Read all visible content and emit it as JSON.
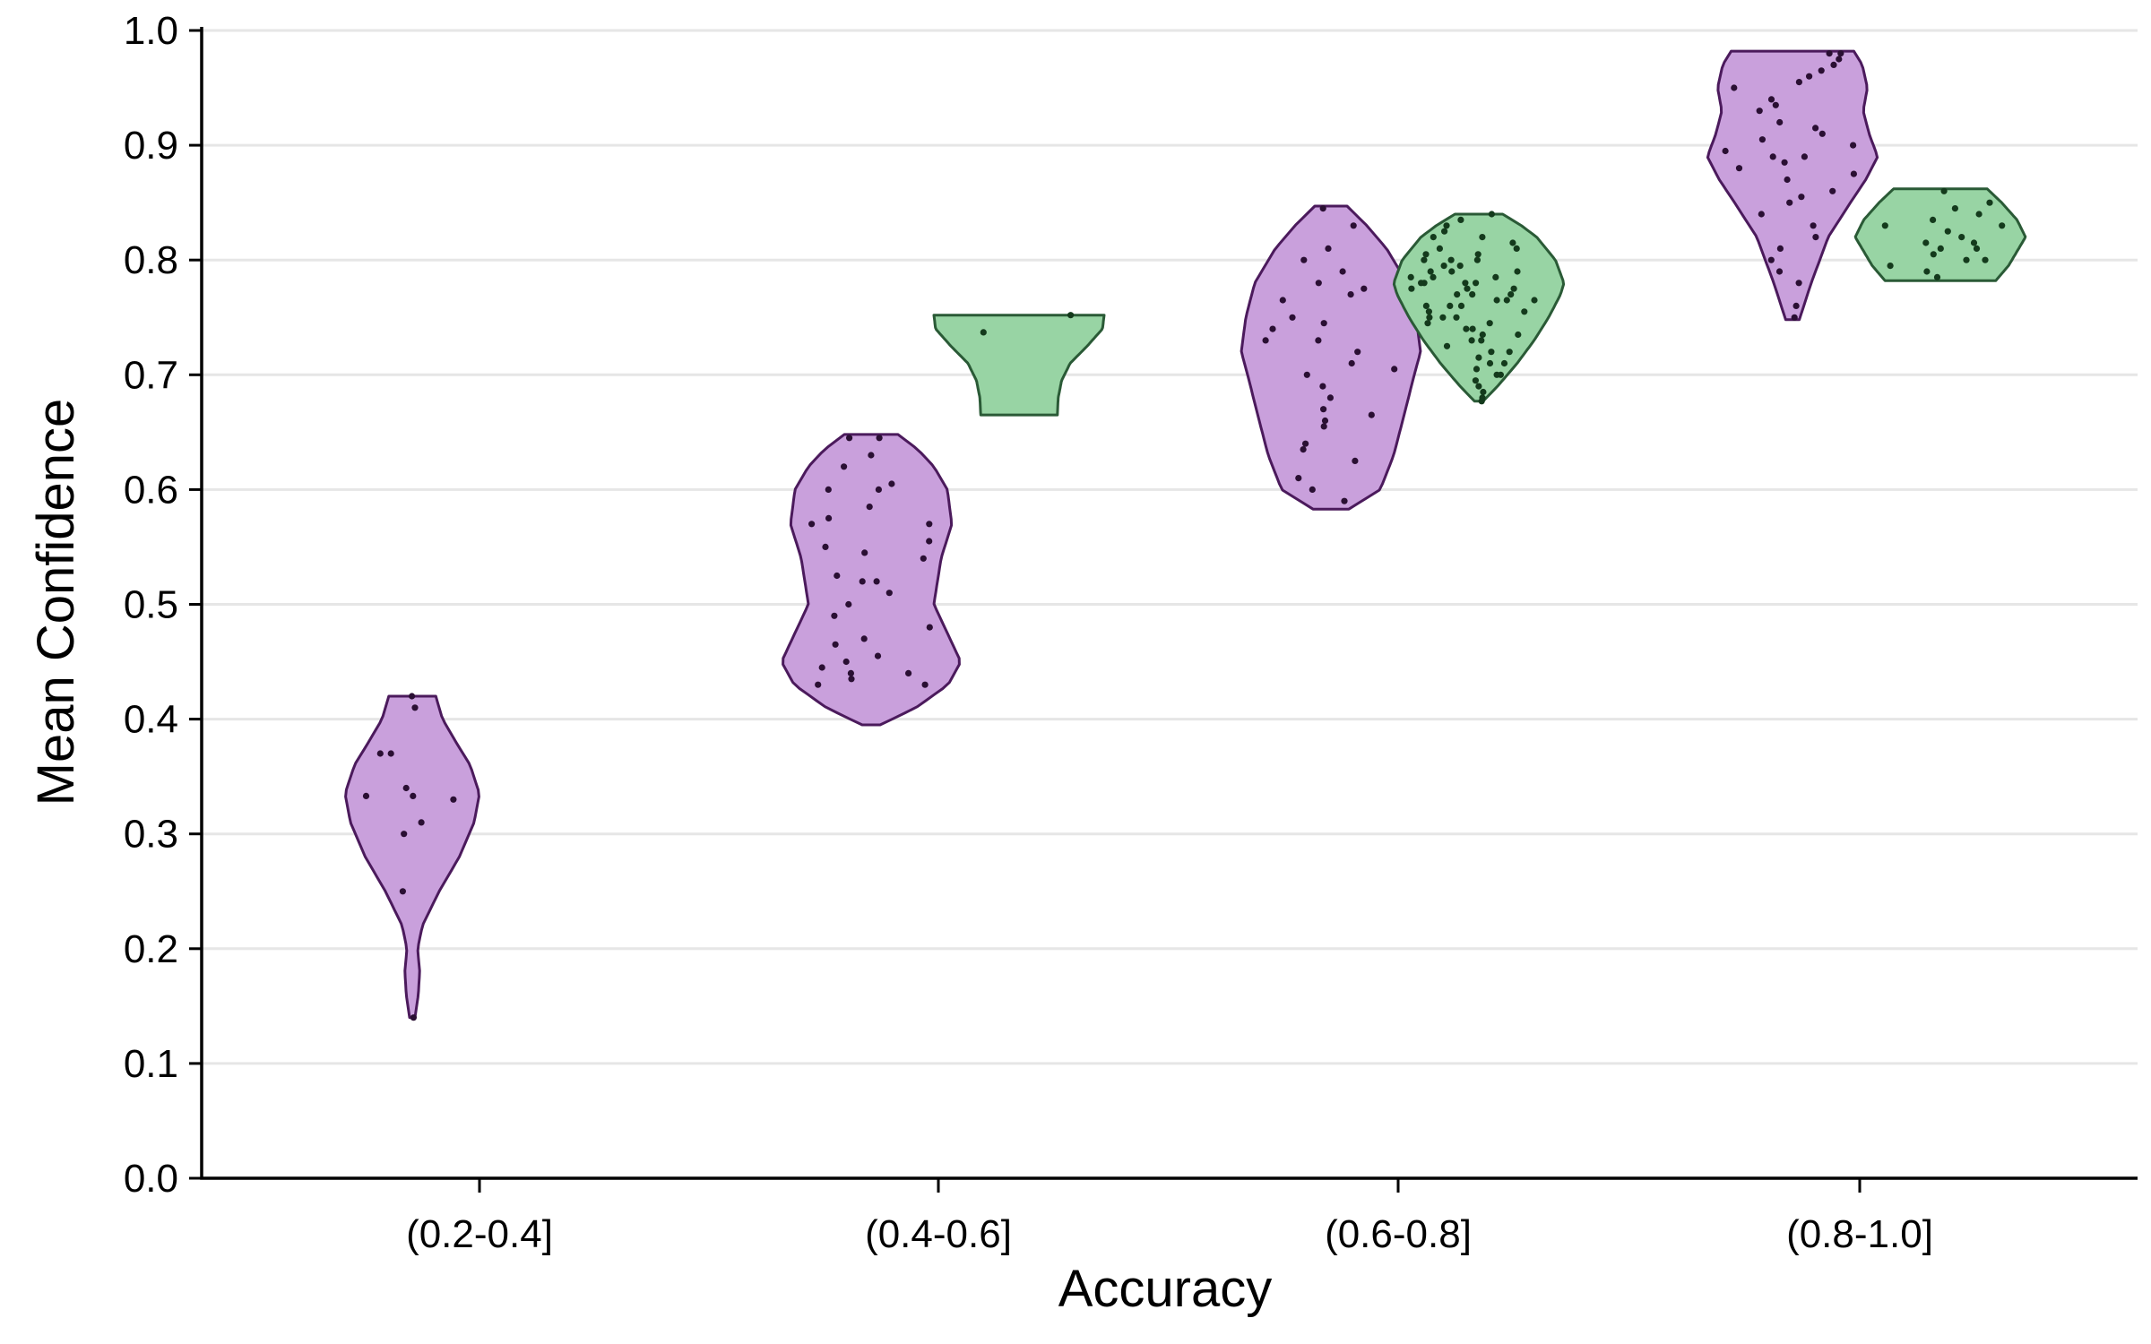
{
  "chart_data": {
    "type": "violin",
    "title": "",
    "xlabel": "Accuracy",
    "ylabel": "Mean Confidence",
    "ylim": [
      0.0,
      1.0
    ],
    "yticks": [
      "0.0",
      "0.1",
      "0.2",
      "0.3",
      "0.4",
      "0.5",
      "0.6",
      "0.7",
      "0.8",
      "0.9",
      "1.0"
    ],
    "categories": [
      "(0.2-0.4]",
      "(0.4-0.6]",
      "(0.6-0.8]",
      "(0.8-1.0]"
    ],
    "grid": "horizontal",
    "legend": "none",
    "colors": {
      "series_a_fill": "#c9a0dc",
      "series_a_stroke": "#4b1a5c",
      "series_a_point": "#2a0f33",
      "series_b_fill": "#98d4a4",
      "series_b_stroke": "#2a5a36",
      "series_b_point": "#143a1c"
    },
    "series": [
      {
        "violins": [
          {
            "category": "(0.2-0.4]",
            "range": [
              0.14,
              0.42
            ],
            "profile": [
              [
                0.14,
                0.04
              ],
              [
                0.16,
                0.09
              ],
              [
                0.18,
                0.11
              ],
              [
                0.2,
                0.08
              ],
              [
                0.22,
                0.15
              ],
              [
                0.25,
                0.4
              ],
              [
                0.28,
                0.7
              ],
              [
                0.31,
                0.92
              ],
              [
                0.335,
                1.0
              ],
              [
                0.36,
                0.86
              ],
              [
                0.38,
                0.65
              ],
              [
                0.4,
                0.45
              ],
              [
                0.42,
                0.35
              ]
            ],
            "points": [
              0.42,
              0.41,
              0.37,
              0.37,
              0.34,
              0.333,
              0.333,
              0.33,
              0.31,
              0.3,
              0.25,
              0.14
            ]
          },
          {
            "category": "(0.4-0.6]",
            "range": [
              0.395,
              0.648
            ],
            "profile": [
              [
                0.395,
                0.1
              ],
              [
                0.41,
                0.5
              ],
              [
                0.43,
                0.86
              ],
              [
                0.45,
                1.0
              ],
              [
                0.47,
                0.88
              ],
              [
                0.5,
                0.7
              ],
              [
                0.54,
                0.78
              ],
              [
                0.57,
                0.9
              ],
              [
                0.6,
                0.85
              ],
              [
                0.62,
                0.7
              ],
              [
                0.635,
                0.52
              ],
              [
                0.648,
                0.3
              ]
            ],
            "points": [
              0.645,
              0.645,
              0.63,
              0.62,
              0.605,
              0.6,
              0.6,
              0.585,
              0.575,
              0.57,
              0.57,
              0.555,
              0.55,
              0.545,
              0.54,
              0.525,
              0.52,
              0.52,
              0.51,
              0.5,
              0.49,
              0.48,
              0.47,
              0.465,
              0.455,
              0.45,
              0.445,
              0.44,
              0.44,
              0.435,
              0.43,
              0.43
            ]
          },
          {
            "category": "(0.6-0.8]",
            "range": [
              0.583,
              0.847
            ],
            "profile": [
              [
                0.583,
                0.2
              ],
              [
                0.6,
                0.55
              ],
              [
                0.63,
                0.7
              ],
              [
                0.66,
                0.8
              ],
              [
                0.7,
                0.93
              ],
              [
                0.72,
                1.0
              ],
              [
                0.75,
                0.95
              ],
              [
                0.78,
                0.85
              ],
              [
                0.81,
                0.62
              ],
              [
                0.83,
                0.4
              ],
              [
                0.847,
                0.18
              ]
            ],
            "points": [
              0.845,
              0.83,
              0.81,
              0.8,
              0.79,
              0.78,
              0.775,
              0.77,
              0.765,
              0.75,
              0.745,
              0.74,
              0.73,
              0.73,
              0.72,
              0.71,
              0.705,
              0.7,
              0.69,
              0.68,
              0.67,
              0.665,
              0.66,
              0.655,
              0.64,
              0.635,
              0.625,
              0.61,
              0.6,
              0.59
            ]
          },
          {
            "category": "(0.8-1.0]",
            "range": [
              0.748,
              0.982
            ],
            "profile": [
              [
                0.748,
                0.08
              ],
              [
                0.78,
                0.22
              ],
              [
                0.82,
                0.42
              ],
              [
                0.85,
                0.68
              ],
              [
                0.87,
                0.86
              ],
              [
                0.89,
                1.0
              ],
              [
                0.91,
                0.9
              ],
              [
                0.93,
                0.83
              ],
              [
                0.95,
                0.88
              ],
              [
                0.97,
                0.82
              ],
              [
                0.982,
                0.72
              ]
            ],
            "points": [
              0.98,
              0.98,
              0.975,
              0.97,
              0.965,
              0.96,
              0.955,
              0.95,
              0.94,
              0.935,
              0.93,
              0.92,
              0.915,
              0.91,
              0.905,
              0.9,
              0.895,
              0.89,
              0.89,
              0.885,
              0.88,
              0.875,
              0.87,
              0.86,
              0.855,
              0.85,
              0.84,
              0.83,
              0.82,
              0.81,
              0.8,
              0.79,
              0.78,
              0.76,
              0.75
            ]
          }
        ]
      },
      {
        "violins": [
          {
            "category": "(0.4-0.6]",
            "range": [
              0.665,
              0.752
            ],
            "profile": [
              [
                0.665,
                0.45
              ],
              [
                0.68,
                0.46
              ],
              [
                0.695,
                0.5
              ],
              [
                0.71,
                0.6
              ],
              [
                0.725,
                0.8
              ],
              [
                0.74,
                0.98
              ],
              [
                0.752,
                1.0
              ]
            ],
            "points": [
              0.752,
              0.737
            ]
          },
          {
            "category": "(0.6-0.8]",
            "range": [
              0.677,
              0.84
            ],
            "profile": [
              [
                0.677,
                0.05
              ],
              [
                0.69,
                0.22
              ],
              [
                0.71,
                0.45
              ],
              [
                0.73,
                0.65
              ],
              [
                0.75,
                0.82
              ],
              [
                0.77,
                0.96
              ],
              [
                0.78,
                1.0
              ],
              [
                0.8,
                0.9
              ],
              [
                0.82,
                0.68
              ],
              [
                0.83,
                0.5
              ],
              [
                0.84,
                0.28
              ]
            ],
            "points": [
              0.84,
              0.835,
              0.83,
              0.825,
              0.82,
              0.82,
              0.815,
              0.81,
              0.81,
              0.805,
              0.805,
              0.8,
              0.8,
              0.8,
              0.795,
              0.795,
              0.79,
              0.79,
              0.79,
              0.785,
              0.785,
              0.785,
              0.78,
              0.78,
              0.78,
              0.78,
              0.775,
              0.775,
              0.775,
              0.77,
              0.77,
              0.77,
              0.765,
              0.765,
              0.765,
              0.76,
              0.76,
              0.76,
              0.755,
              0.755,
              0.75,
              0.75,
              0.75,
              0.745,
              0.745,
              0.74,
              0.74,
              0.735,
              0.735,
              0.73,
              0.73,
              0.725,
              0.72,
              0.72,
              0.715,
              0.71,
              0.71,
              0.705,
              0.7,
              0.7,
              0.695,
              0.69,
              0.685,
              0.68,
              0.677
            ]
          },
          {
            "category": "(0.8-1.0]",
            "range": [
              0.782,
              0.862
            ],
            "profile": [
              [
                0.782,
                0.65
              ],
              [
                0.795,
                0.8
              ],
              [
                0.81,
                0.92
              ],
              [
                0.82,
                1.0
              ],
              [
                0.835,
                0.9
              ],
              [
                0.85,
                0.72
              ],
              [
                0.862,
                0.55
              ]
            ],
            "points": [
              0.86,
              0.85,
              0.845,
              0.84,
              0.835,
              0.83,
              0.83,
              0.825,
              0.82,
              0.815,
              0.815,
              0.81,
              0.81,
              0.805,
              0.8,
              0.8,
              0.795,
              0.79,
              0.785
            ]
          }
        ]
      }
    ]
  }
}
